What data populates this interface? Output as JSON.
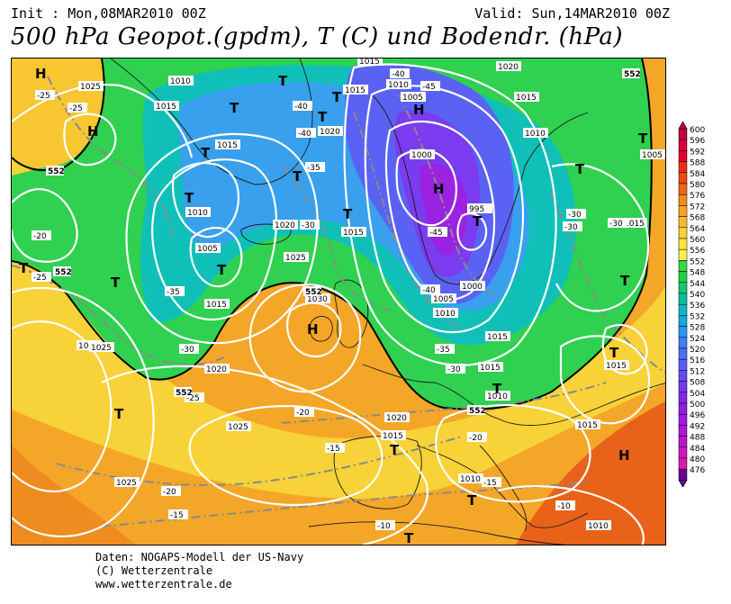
{
  "header": {
    "init": "Init : Mon,08MAR2010 00Z",
    "valid": "Valid: Sun,14MAR2010 00Z",
    "title": "500 hPa Geopot.(gpdm), T (C) und Bodendr. (hPa)"
  },
  "footer": {
    "line1": "Daten: NOGAPS-Modell der US-Navy",
    "line2": "(C) Wetterzentrale",
    "line3": "www.wetterzentrale.de"
  },
  "colors": {
    "background": "#ffffff",
    "isobar": "#ffffff",
    "isotherm": "#8a8a8a",
    "line_552": "#000000",
    "coast": "#1a1a1a"
  },
  "legend": {
    "values": [
      "600",
      "596",
      "592",
      "588",
      "584",
      "580",
      "576",
      "572",
      "568",
      "564",
      "560",
      "556",
      "552",
      "548",
      "544",
      "540",
      "536",
      "532",
      "528",
      "524",
      "520",
      "516",
      "512",
      "508",
      "504",
      "500",
      "496",
      "492",
      "488",
      "484",
      "480",
      "476"
    ],
    "colors": [
      "#c2003f",
      "#d8003c",
      "#e60030",
      "#ee2a1a",
      "#f04810",
      "#f06512",
      "#f28c18",
      "#f5a522",
      "#f8bd2a",
      "#fad132",
      "#fde33e",
      "#fff050",
      "#38d84a",
      "#20d040",
      "#0ec876",
      "#06c0a2",
      "#0ab8c8",
      "#16a8e0",
      "#2a94f0",
      "#3c80f5",
      "#4e6ef8",
      "#5c5af8",
      "#6848f5",
      "#7438f0",
      "#8228ea",
      "#9020e4",
      "#a018de",
      "#b016d6",
      "#c014cc",
      "#d018c0",
      "#d81cb0",
      "#6a0090"
    ]
  },
  "map": {
    "pressure_systems": [
      {
        "symbol": "H"
      },
      {
        "symbol": "H"
      },
      {
        "symbol": "T"
      },
      {
        "symbol": "T"
      },
      {
        "symbol": "T"
      },
      {
        "symbol": "T"
      },
      {
        "symbol": "T"
      },
      {
        "symbol": "T"
      },
      {
        "symbol": "T"
      },
      {
        "symbol": "T"
      },
      {
        "symbol": "T"
      },
      {
        "symbol": "T"
      },
      {
        "symbol": "T"
      },
      {
        "symbol": "H"
      },
      {
        "symbol": "H"
      },
      {
        "symbol": "H"
      },
      {
        "symbol": "T"
      },
      {
        "symbol": "T"
      },
      {
        "symbol": "T"
      },
      {
        "symbol": "T"
      },
      {
        "symbol": "T"
      },
      {
        "symbol": "T"
      },
      {
        "symbol": "H"
      },
      {
        "symbol": "T"
      },
      {
        "symbol": "T"
      },
      {
        "symbol": "T"
      },
      {
        "symbol": "T"
      }
    ],
    "isobar_labels": [
      "1025",
      "1015",
      "1010",
      "1015",
      "1015",
      "1020",
      "1010",
      "1005",
      "1020",
      "1025",
      "1030",
      "1015",
      "1020",
      "1015",
      "1025",
      "1010",
      "1005",
      "1000",
      "995",
      "1000",
      "1005",
      "1010",
      "1015",
      "1015",
      "1015",
      "1020",
      "1015",
      "1010",
      "1005",
      "1015",
      "1015",
      "1025",
      "1025",
      "1020",
      "1015",
      "1010",
      "1015",
      "1010",
      "1025",
      "1010"
    ],
    "isotherm_labels": [
      "-25",
      "-25",
      "-20",
      "-25",
      "-40",
      "-45",
      "-40",
      "-40",
      "-35",
      "-30",
      "-45",
      "-40",
      "-35",
      "-30",
      "-30",
      "-25",
      "-20",
      "-15",
      "-20",
      "-15",
      "-15",
      "-10",
      "-10",
      "-20",
      "-30",
      "-35",
      "-30",
      "-30"
    ],
    "contour_552_labels": [
      "552",
      "552",
      "552",
      "552",
      "552",
      "552"
    ]
  }
}
